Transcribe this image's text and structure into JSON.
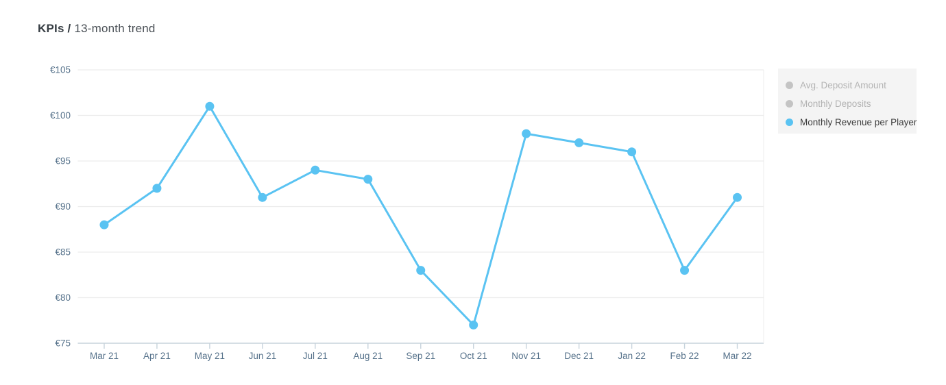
{
  "header": {
    "title_bold": "KPIs /",
    "title_rest": "13-month trend"
  },
  "legend": {
    "items": [
      {
        "label": "Avg. Deposit Amount",
        "active": false
      },
      {
        "label": "Monthly Deposits",
        "active": false
      },
      {
        "label": "Monthly Revenue per Player",
        "active": true
      }
    ]
  },
  "colors": {
    "series_line": "#5AC3F2",
    "legend_disabled_dot": "#C4C4C4",
    "legend_disabled_text": "#B3B3B3",
    "legend_active_text": "#3D3D3D",
    "axis_label": "#55718A",
    "grid_line": "#ECECEC",
    "axis_line": "#C7D3DC",
    "legend_bg": "#F4F4F4"
  },
  "chart_data": {
    "type": "line",
    "title": "KPIs / 13-month trend",
    "categories": [
      "Mar 21",
      "Apr 21",
      "May 21",
      "Jun 21",
      "Jul 21",
      "Aug 21",
      "Sep 21",
      "Oct 21",
      "Nov 21",
      "Dec 21",
      "Jan 22",
      "Feb 22",
      "Mar 22"
    ],
    "series": [
      {
        "name": "Avg. Deposit Amount",
        "visible": false,
        "values": []
      },
      {
        "name": "Monthly Deposits",
        "visible": false,
        "values": []
      },
      {
        "name": "Monthly Revenue per Player",
        "visible": true,
        "values": [
          88,
          92,
          101,
          91,
          94,
          93,
          83,
          77,
          98,
          97,
          96,
          83,
          91
        ]
      }
    ],
    "currency_prefix": "€",
    "ylim": [
      75,
      105
    ],
    "ytick_step": 5,
    "yticks": [
      75,
      80,
      85,
      90,
      95,
      100,
      105
    ],
    "xlabel": "",
    "ylabel": "",
    "grid": true,
    "legend_position": "right"
  }
}
